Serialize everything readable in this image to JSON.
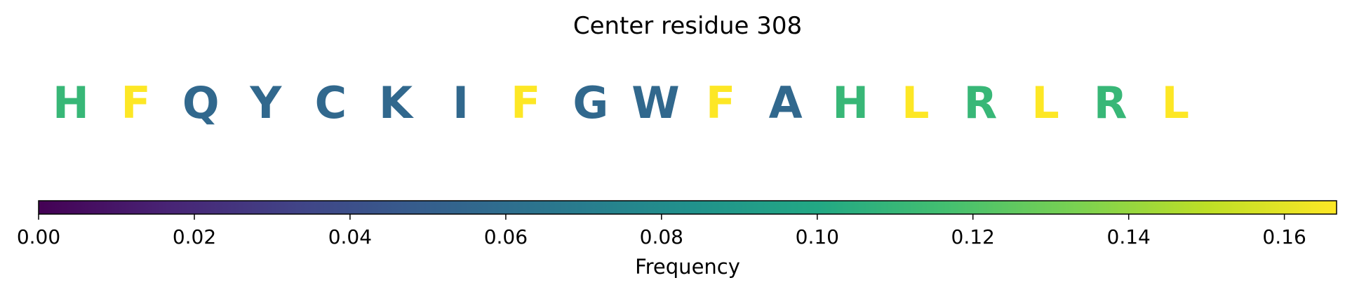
{
  "chart_data": {
    "type": "heatmap",
    "title": "Center residue 308",
    "residues": [
      {
        "letter": "H",
        "frequency": 0.111
      },
      {
        "letter": "F",
        "frequency": 0.167
      },
      {
        "letter": "Q",
        "frequency": 0.056
      },
      {
        "letter": "Y",
        "frequency": 0.056
      },
      {
        "letter": "C",
        "frequency": 0.056
      },
      {
        "letter": "K",
        "frequency": 0.056
      },
      {
        "letter": "I",
        "frequency": 0.056
      },
      {
        "letter": "F",
        "frequency": 0.167
      },
      {
        "letter": "G",
        "frequency": 0.056
      },
      {
        "letter": "W",
        "frequency": 0.056
      },
      {
        "letter": "F",
        "frequency": 0.167
      },
      {
        "letter": "A",
        "frequency": 0.056
      },
      {
        "letter": "H",
        "frequency": 0.111
      },
      {
        "letter": "L",
        "frequency": 0.167
      },
      {
        "letter": "R",
        "frequency": 0.111
      },
      {
        "letter": "L",
        "frequency": 0.167
      },
      {
        "letter": "R",
        "frequency": 0.111
      },
      {
        "letter": "L",
        "frequency": 0.167
      }
    ],
    "colorbar": {
      "label": "Frequency",
      "colormap": "viridis",
      "range": [
        0,
        0.1667
      ],
      "ticks": [
        0.0,
        0.02,
        0.04,
        0.06,
        0.08,
        0.1,
        0.12,
        0.14,
        0.16
      ],
      "tick_labels": [
        "0.00",
        "0.02",
        "0.04",
        "0.06",
        "0.08",
        "0.10",
        "0.12",
        "0.14",
        "0.16"
      ]
    }
  }
}
